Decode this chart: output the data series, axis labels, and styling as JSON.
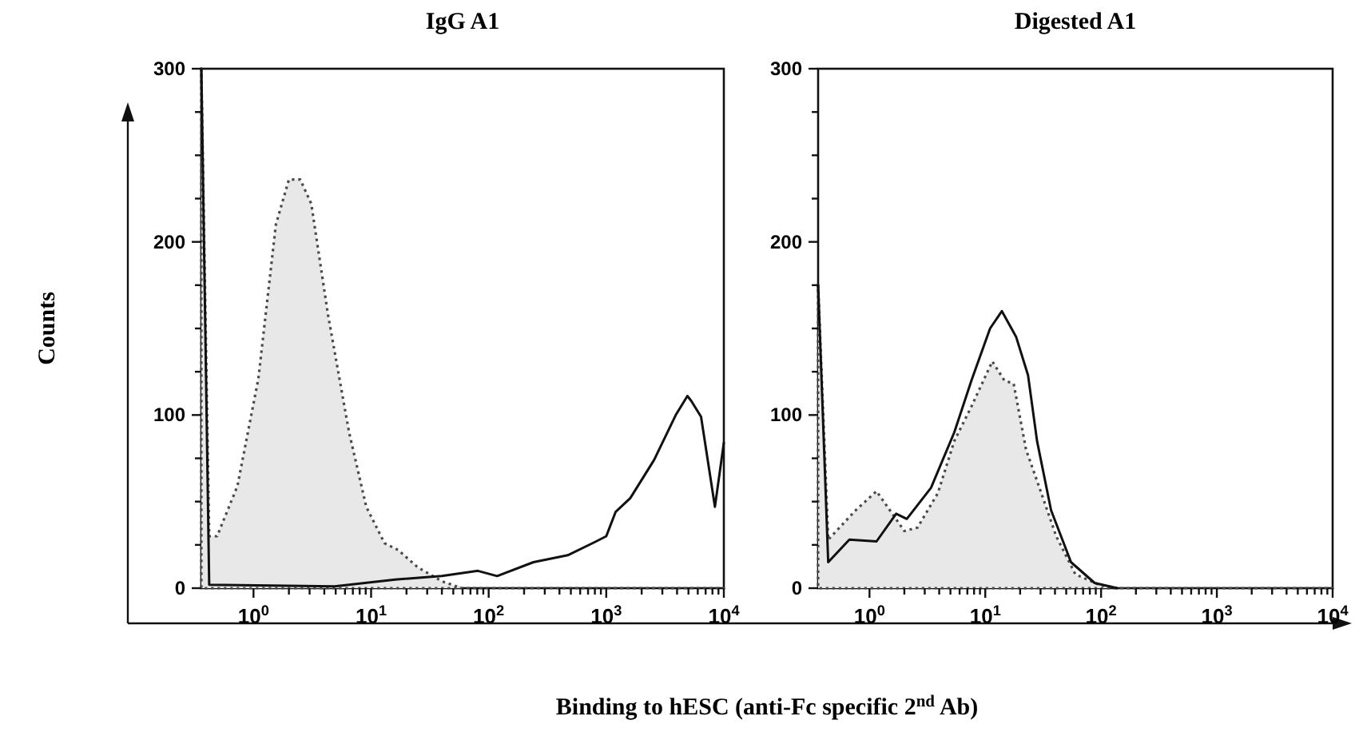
{
  "chart_data": [
    {
      "type": "area",
      "title": "IgG A1",
      "xlabel": "Binding to hESC (anti-Fc specific 2$^{nd}$ Ab)",
      "ylabel": "Counts",
      "log": "x",
      "xlim": [
        0.36,
        10000
      ],
      "ylim": [
        0,
        300
      ],
      "xticks": [
        {
          "value": 1,
          "label": "10$^{0}$"
        },
        {
          "value": 2,
          "label": null
        },
        {
          "value": 3,
          "label": null
        },
        {
          "value": 4,
          "label": null
        },
        {
          "value": 5,
          "label": null
        },
        {
          "value": 6,
          "label": null
        },
        {
          "value": 7,
          "label": null
        },
        {
          "value": 8,
          "label": null
        },
        {
          "value": 9,
          "label": null
        },
        {
          "value": 10,
          "label": "10$^{1}$"
        },
        {
          "value": 20,
          "label": null
        },
        {
          "value": 30,
          "label": null
        },
        {
          "value": 40,
          "label": null
        },
        {
          "value": 50,
          "label": null
        },
        {
          "value": 60,
          "label": null
        },
        {
          "value": 70,
          "label": null
        },
        {
          "value": 80,
          "label": null
        },
        {
          "value": 90,
          "label": null
        },
        {
          "value": 100,
          "label": "10$^{2}$"
        },
        {
          "value": 200,
          "label": null
        },
        {
          "value": 300,
          "label": null
        },
        {
          "value": 400,
          "label": null
        },
        {
          "value": 500,
          "label": null
        },
        {
          "value": 600,
          "label": null
        },
        {
          "value": 700,
          "label": null
        },
        {
          "value": 800,
          "label": null
        },
        {
          "value": 900,
          "label": null
        },
        {
          "value": 1000,
          "label": "10$^{3}$"
        },
        {
          "value": 2000,
          "label": null
        },
        {
          "value": 3000,
          "label": null
        },
        {
          "value": 4000,
          "label": null
        },
        {
          "value": 5000,
          "label": null
        },
        {
          "value": 6000,
          "label": null
        },
        {
          "value": 7000,
          "label": null
        },
        {
          "value": 8000,
          "label": null
        },
        {
          "value": 9000,
          "label": null
        },
        {
          "value": 10000,
          "label": "10$^{4}$"
        }
      ],
      "yticks": [
        0,
        {
          "value": 25,
          "label": null
        },
        {
          "value": 50,
          "label": null
        },
        {
          "value": 75,
          "label": null
        },
        100,
        {
          "value": 125,
          "label": null
        },
        {
          "value": 150,
          "label": null
        },
        {
          "value": 175,
          "label": null
        },
        200,
        {
          "value": 225,
          "label": null
        },
        {
          "value": 250,
          "label": null
        },
        {
          "value": 275,
          "label": null
        },
        300
      ],
      "series": [
        {
          "color": "#e8e8e8",
          "line_style": "dotted",
          "x": [
            0.36,
            0.42,
            0.49,
            0.73,
            1.1,
            1.55,
            2.0,
            2.5,
            3.1,
            4.3,
            6.5,
            9.1,
            13,
            17,
            25,
            40,
            59,
            10000
          ],
          "values": [
            300,
            30,
            30,
            59,
            121,
            210,
            236,
            236,
            222,
            158,
            90,
            47,
            26,
            22,
            12,
            4,
            0,
            0
          ]
        },
        {
          "type": "line",
          "color": "#111111",
          "line_style": "solid",
          "x": [
            0.36,
            0.42,
            4.9,
            16,
            40,
            81,
            118,
            240,
            470,
            820,
            1000,
            1200,
            1600,
            2550,
            3900,
            4900,
            5300,
            6400,
            8400,
            10000
          ],
          "values": [
            300,
            2,
            1,
            5,
            7,
            10,
            7,
            15,
            19,
            27,
            30,
            44,
            52,
            74,
            100,
            111,
            108,
            99,
            47,
            84
          ]
        }
      ]
    },
    {
      "type": "area",
      "title": "Digested A1",
      "log": "x",
      "xlim": [
        0.36,
        10000
      ],
      "ylim": [
        0,
        300
      ],
      "xticks": [
        {
          "value": 1,
          "label": "10$^{0}$"
        },
        {
          "value": 2,
          "label": null
        },
        {
          "value": 3,
          "label": null
        },
        {
          "value": 4,
          "label": null
        },
        {
          "value": 5,
          "label": null
        },
        {
          "value": 6,
          "label": null
        },
        {
          "value": 7,
          "label": null
        },
        {
          "value": 8,
          "label": null
        },
        {
          "value": 9,
          "label": null
        },
        {
          "value": 10,
          "label": "10$^{1}$"
        },
        {
          "value": 20,
          "label": null
        },
        {
          "value": 30,
          "label": null
        },
        {
          "value": 40,
          "label": null
        },
        {
          "value": 50,
          "label": null
        },
        {
          "value": 60,
          "label": null
        },
        {
          "value": 70,
          "label": null
        },
        {
          "value": 80,
          "label": null
        },
        {
          "value": 90,
          "label": null
        },
        {
          "value": 100,
          "label": "10$^{2}$"
        },
        {
          "value": 200,
          "label": null
        },
        {
          "value": 300,
          "label": null
        },
        {
          "value": 400,
          "label": null
        },
        {
          "value": 500,
          "label": null
        },
        {
          "value": 600,
          "label": null
        },
        {
          "value": 700,
          "label": null
        },
        {
          "value": 800,
          "label": null
        },
        {
          "value": 900,
          "label": null
        },
        {
          "value": 1000,
          "label": "10$^{3}$"
        },
        {
          "value": 2000,
          "label": null
        },
        {
          "value": 3000,
          "label": null
        },
        {
          "value": 4000,
          "label": null
        },
        {
          "value": 5000,
          "label": null
        },
        {
          "value": 6000,
          "label": null
        },
        {
          "value": 7000,
          "label": null
        },
        {
          "value": 8000,
          "label": null
        },
        {
          "value": 9000,
          "label": null
        },
        {
          "value": 10000,
          "label": "10$^{4}$"
        }
      ],
      "yticks": [
        0,
        {
          "value": 25,
          "label": null
        },
        {
          "value": 50,
          "label": null
        },
        {
          "value": 75,
          "label": null
        },
        100,
        {
          "value": 125,
          "label": null
        },
        {
          "value": 150,
          "label": null
        },
        {
          "value": 175,
          "label": null
        },
        200,
        {
          "value": 225,
          "label": null
        },
        {
          "value": 250,
          "label": null
        },
        {
          "value": 275,
          "label": null
        },
        300
      ],
      "series": [
        {
          "color": "#e8e8e8",
          "line_style": "dotted",
          "x": [
            0.36,
            0.44,
            0.76,
            1.15,
            1.5,
            2.0,
            2.6,
            3.9,
            5.4,
            7.6,
            11.5,
            14.6,
            17.6,
            22.5,
            28,
            41,
            60,
            96,
            138,
            10000
          ],
          "values": [
            175,
            28,
            45,
            56,
            45,
            33,
            35,
            55,
            85,
            105,
            131,
            120,
            118,
            80,
            62,
            30,
            8,
            2,
            0,
            0
          ]
        },
        {
          "type": "line",
          "color": "#111111",
          "line_style": "solid",
          "x": [
            0.36,
            0.44,
            0.67,
            1.15,
            1.7,
            2.1,
            3.4,
            5.4,
            7.6,
            11,
            13.9,
            18.5,
            23.4,
            28,
            37,
            55,
            88,
            138
          ],
          "values": [
            175,
            15,
            28,
            27,
            43,
            40,
            58,
            90,
            120,
            150,
            160,
            145,
            123,
            85,
            45,
            15,
            3,
            0
          ]
        }
      ]
    }
  ]
}
